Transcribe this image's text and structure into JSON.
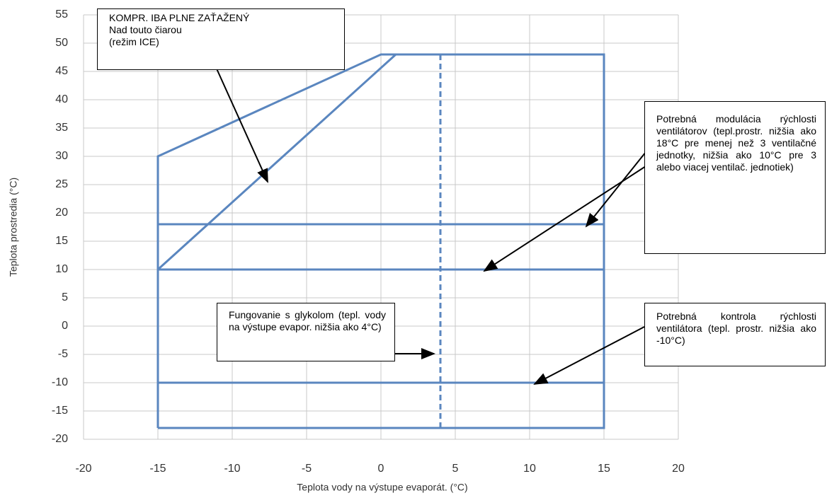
{
  "chart_data": {
    "type": "line",
    "x_label": "Teplota vody na výstupe evaporát. (°C)",
    "y_label": "Teplota prostredia (°C)",
    "xlim": [
      -20,
      20
    ],
    "xticks": [
      -20,
      -15,
      -10,
      -5,
      0,
      5,
      10,
      15,
      20
    ],
    "ylim": [
      -20,
      55
    ],
    "yticks": [
      -20,
      -15,
      -10,
      -5,
      0,
      5,
      10,
      15,
      20,
      25,
      30,
      35,
      40,
      45,
      50,
      55
    ],
    "grid": true,
    "series": [
      {
        "color": "#5a86bf",
        "x": [
          -15,
          -15,
          0,
          15,
          15,
          -15
        ],
        "values": [
          -18,
          30,
          48,
          48,
          -18,
          -18
        ]
      },
      {
        "color": "#5a86bf",
        "x": [
          -15,
          1
        ],
        "values": [
          10,
          48
        ]
      },
      {
        "color": "#5a86bf",
        "x": [
          -15,
          15
        ],
        "values": [
          18,
          18
        ]
      },
      {
        "color": "#5a86bf",
        "x": [
          -15,
          15
        ],
        "values": [
          10,
          10
        ]
      },
      {
        "color": "#5a86bf",
        "x": [
          -15,
          15
        ],
        "values": [
          -10,
          -10
        ]
      },
      {
        "color": "#5a86bf",
        "x": [
          4,
          4
        ],
        "values": [
          -18,
          48
        ],
        "dashed": true
      }
    ],
    "annotations": [
      {
        "lines": [
          "KOMPR. IBA PLNE ZAŤAŽENÝ",
          "Nad touto čiarou",
          "(režim ICE)"
        ]
      },
      {
        "text": "Potrebná modulácia rýchlosti ventilátorov (tepl.prostr. nižšia ako 18°C pre menej než 3 ventilačné jednotky, nižšia ako 10°C pre 3 alebo viacej ventilač. jednotiek)"
      },
      {
        "text": "Fungovanie s glykolom (tepl. vody na výstupe evapor. nižšia ako 4°C)"
      },
      {
        "text": "Potrebná kontrola rýchlosti ventilátora (tepl. prostr. nižšia ako -10°C)"
      }
    ]
  }
}
